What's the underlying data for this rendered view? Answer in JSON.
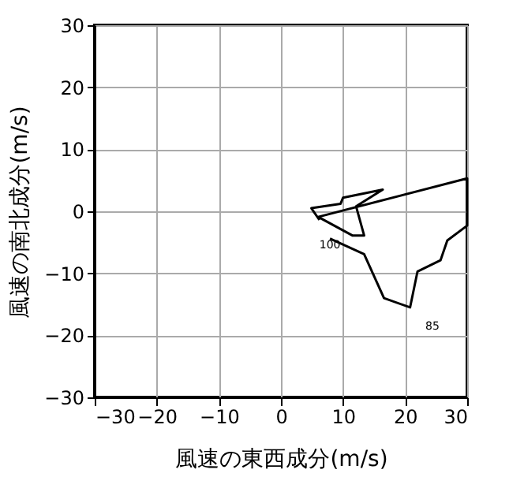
{
  "chart_data": {
    "type": "line",
    "xlabel": "風速の東西成分(m/s)",
    "ylabel": "風速の南北成分(m/s)",
    "xlim": [
      -30,
      30
    ],
    "ylim": [
      -30,
      30
    ],
    "xticks": [
      {
        "value": -30,
        "label": "−30"
      },
      {
        "value": -20,
        "label": "−20"
      },
      {
        "value": -10,
        "label": "−10"
      },
      0,
      10,
      20,
      30
    ],
    "yticks": [
      {
        "value": -30,
        "label": "−30"
      },
      {
        "value": -20,
        "label": "−20"
      },
      {
        "value": -10,
        "label": "−10"
      },
      0,
      10,
      20,
      30
    ],
    "grid": true,
    "marker": "none",
    "line_style": "solid",
    "series": [
      {
        "color": "#000000",
        "x": [
          7.9,
          13.4,
          16.6,
          20.8,
          22.0,
          25.7,
          26.8,
          30,
          30,
          6.0,
          11.5,
          13.4,
          12.1,
          16.4,
          10.0,
          9.6,
          4.9,
          6.2
        ],
        "values": [
          -4.4,
          -6.9,
          -14.0,
          -15.5,
          -9.7,
          -7.9,
          -4.7,
          -2.3,
          5.3,
          -0.9,
          -3.9,
          -3.9,
          0.8,
          3.5,
          2.2,
          1.2,
          0.5,
          -1.4
        ]
      }
    ],
    "annotations": [
      {
        "text": "100",
        "x": 7.9,
        "y": -5.5
      },
      "85"
    ]
  }
}
